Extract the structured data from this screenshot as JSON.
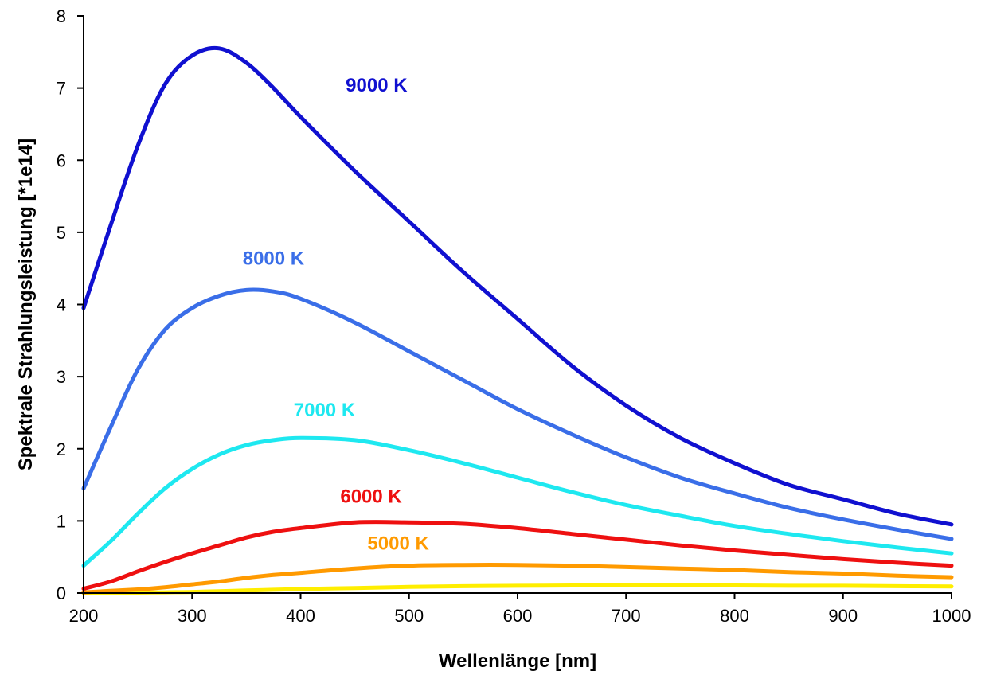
{
  "chart_data": {
    "type": "line",
    "title": "",
    "xlabel": "Wellenlänge [nm]",
    "ylabel": "Spektrale Strahlungsleistung [*1e14]",
    "xlim": [
      200,
      1000
    ],
    "ylim": [
      0,
      8
    ],
    "xticks": [
      200,
      300,
      400,
      500,
      600,
      700,
      800,
      900,
      1000
    ],
    "yticks": [
      0,
      1,
      2,
      3,
      4,
      5,
      6,
      7,
      8
    ],
    "grid": false,
    "x": [
      200,
      225,
      250,
      275,
      300,
      325,
      350,
      375,
      400,
      450,
      500,
      550,
      600,
      650,
      700,
      750,
      800,
      850,
      900,
      950,
      1000
    ],
    "series": [
      {
        "name": "9000 K",
        "color": "#1010d0",
        "values": [
          3.95,
          5.1,
          6.2,
          7.05,
          7.45,
          7.55,
          7.35,
          7.0,
          6.6,
          5.85,
          5.15,
          4.45,
          3.8,
          3.15,
          2.6,
          2.15,
          1.8,
          1.5,
          1.3,
          1.1,
          0.95
        ]
      },
      {
        "name": "8000 K",
        "color": "#3a6ee8",
        "values": [
          1.45,
          2.3,
          3.1,
          3.65,
          3.95,
          4.12,
          4.2,
          4.18,
          4.08,
          3.75,
          3.35,
          2.95,
          2.55,
          2.2,
          1.88,
          1.6,
          1.38,
          1.18,
          1.02,
          0.88,
          0.75
        ]
      },
      {
        "name": "7000 K",
        "color": "#1ee8f0",
        "values": [
          0.38,
          0.72,
          1.1,
          1.45,
          1.72,
          1.92,
          2.05,
          2.12,
          2.15,
          2.12,
          1.98,
          1.8,
          1.6,
          1.4,
          1.22,
          1.07,
          0.93,
          0.82,
          0.72,
          0.63,
          0.55
        ]
      },
      {
        "name": "6000 K",
        "color": "#ee1010",
        "values": [
          0.06,
          0.16,
          0.3,
          0.43,
          0.55,
          0.66,
          0.77,
          0.85,
          0.9,
          0.98,
          0.98,
          0.96,
          0.9,
          0.82,
          0.74,
          0.66,
          0.59,
          0.53,
          0.47,
          0.42,
          0.38
        ]
      },
      {
        "name": "5000 K",
        "color": "#ff9a00",
        "values": [
          0.01,
          0.03,
          0.05,
          0.08,
          0.12,
          0.16,
          0.21,
          0.25,
          0.28,
          0.34,
          0.38,
          0.39,
          0.39,
          0.38,
          0.36,
          0.34,
          0.32,
          0.29,
          0.27,
          0.24,
          0.22
        ]
      },
      {
        "name": "",
        "color": "#ffee00",
        "values": [
          0.0,
          0.0,
          0.005,
          0.01,
          0.015,
          0.025,
          0.035,
          0.045,
          0.055,
          0.07,
          0.085,
          0.095,
          0.1,
          0.105,
          0.105,
          0.105,
          0.105,
          0.1,
          0.1,
          0.095,
          0.09
        ]
      }
    ],
    "labels": [
      {
        "text": "9000 K",
        "x": 470,
        "y": 6.95,
        "color": "#1010d0"
      },
      {
        "text": "8000 K",
        "x": 375,
        "y": 4.55,
        "color": "#3a6ee8"
      },
      {
        "text": "7000 K",
        "x": 422,
        "y": 2.45,
        "color": "#1ee8f0"
      },
      {
        "text": "6000 K",
        "x": 465,
        "y": 1.25,
        "color": "#ee1010"
      },
      {
        "text": "5000 K",
        "x": 490,
        "y": 0.6,
        "color": "#ff9a00"
      }
    ]
  }
}
